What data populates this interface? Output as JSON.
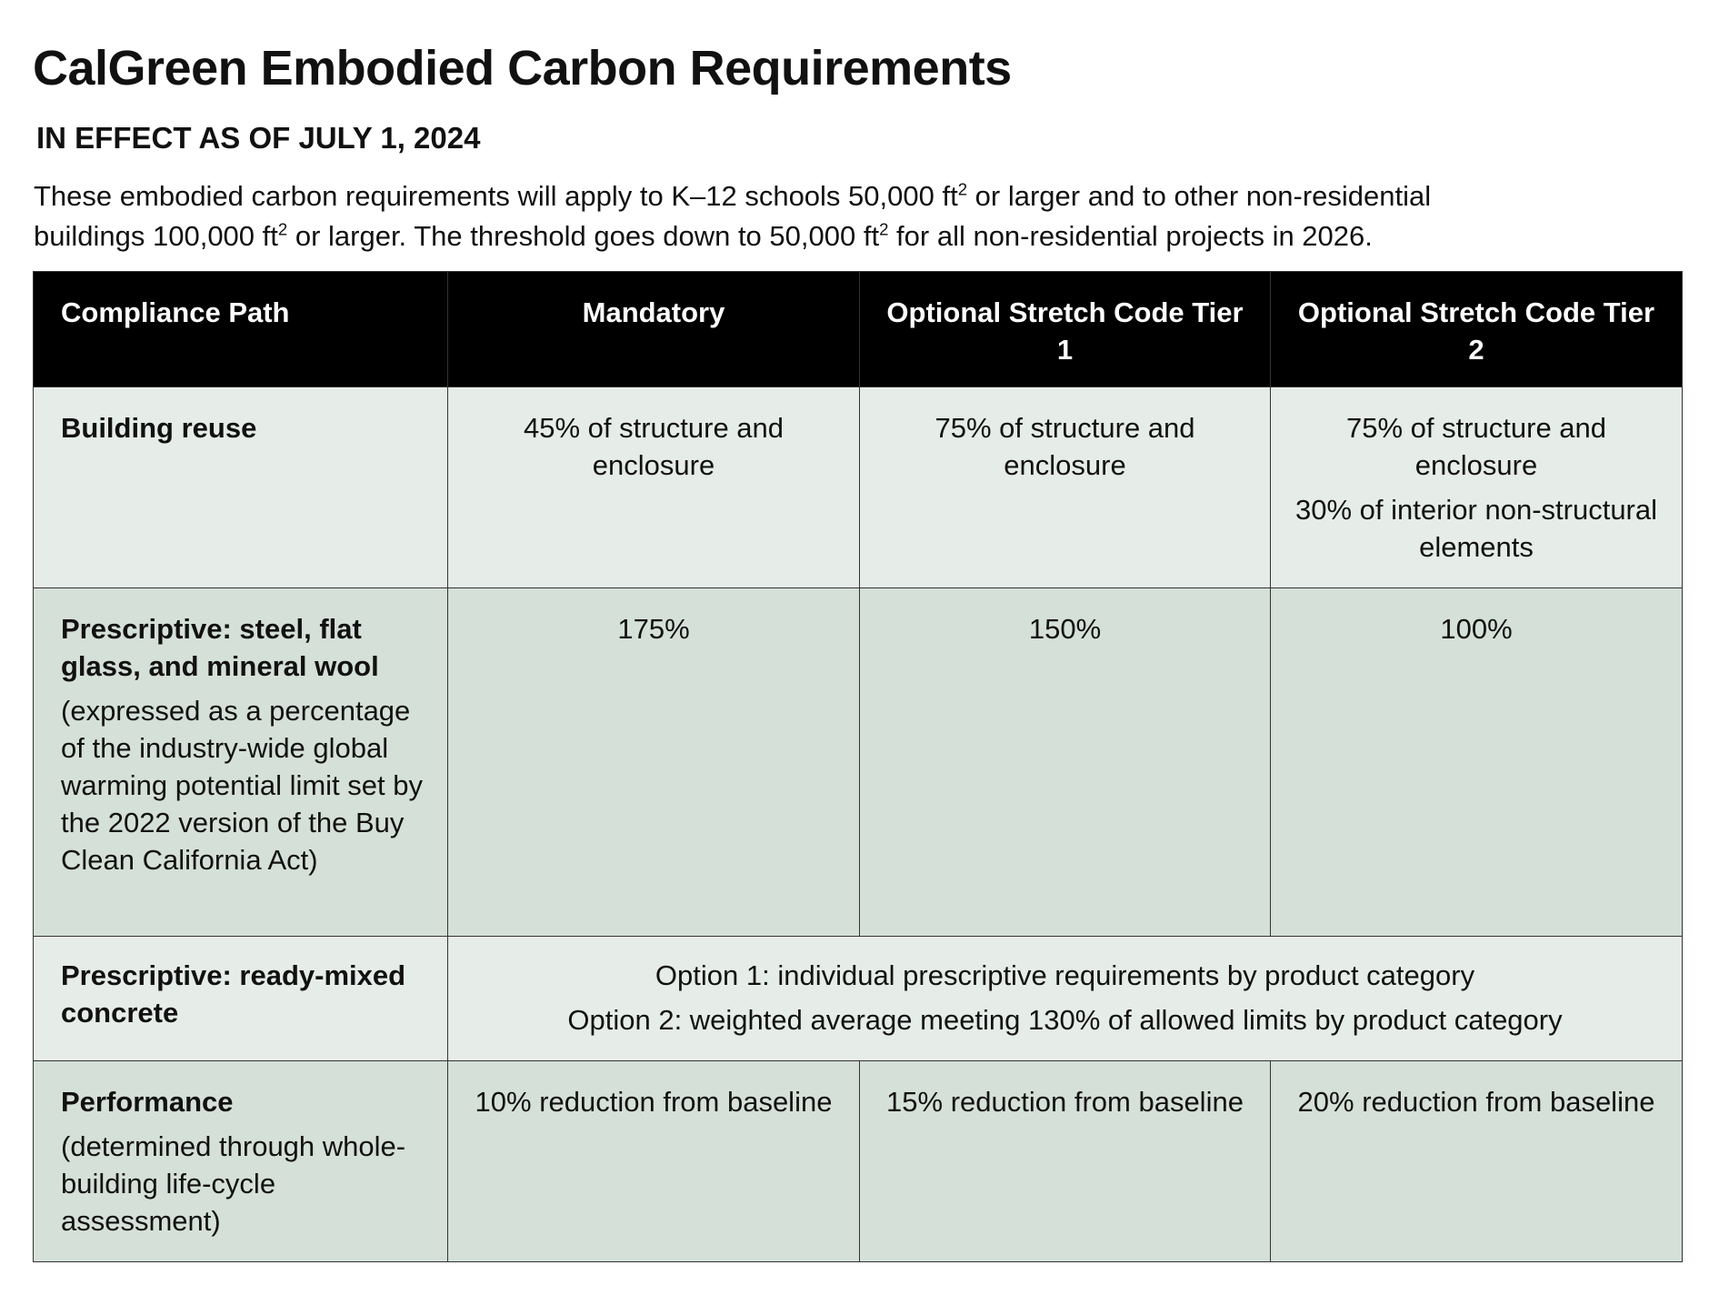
{
  "title": "CalGreen Embodied Carbon Requirements",
  "subtitle": "IN EFFECT AS OF JULY 1, 2024",
  "intro": {
    "line1_a": "These embodied carbon requirements will apply to K–12 schools 50,000 ft",
    "line1_b": " or larger and to other non-residential",
    "line2_a": "buildings 100,000 ft",
    "line2_b": " or larger. The threshold goes down to 50,000 ft",
    "line2_c": " for all non-residential projects in 2026.",
    "sup": "2"
  },
  "table": {
    "headers": [
      "Compliance Path",
      "Mandatory",
      "Optional Stretch Code Tier 1",
      "Optional Stretch Code Tier 2"
    ],
    "rows": [
      {
        "label": "Building reuse",
        "note": "",
        "cells": [
          [
            "45% of structure and enclosure"
          ],
          [
            "75% of structure and enclosure"
          ],
          [
            "75% of structure and enclosure",
            "30% of interior non-structural elements"
          ]
        ]
      },
      {
        "label": "Prescriptive: steel, flat glass, and mineral wool",
        "note": "(expressed as a percentage of the industry-wide global warming potential limit set by the 2022 version of the Buy Clean California Act)",
        "cells": [
          [
            "175%"
          ],
          [
            "150%"
          ],
          [
            "100%"
          ]
        ]
      },
      {
        "label": "Prescriptive: ready-mixed concrete",
        "note": "",
        "merged": [
          "Option 1: individual prescriptive requirements by product category",
          "Option 2: weighted average meeting 130% of allowed limits by product category"
        ]
      },
      {
        "label": "Performance",
        "note": "(determined through whole-building life-cycle assessment)",
        "cells": [
          [
            "10% reduction from baseline"
          ],
          [
            "15% reduction from baseline"
          ],
          [
            "20% reduction from baseline"
          ]
        ]
      }
    ]
  },
  "colors": {
    "header_bg": "#000000",
    "row_light": "#e6ece8",
    "row_dark": "#d5e0d8"
  }
}
